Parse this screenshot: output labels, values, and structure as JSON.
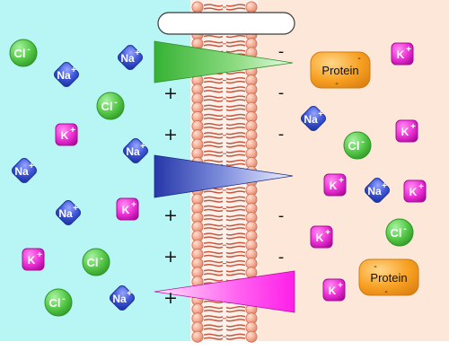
{
  "labels": {
    "title_box": "",
    "cl": "Cl",
    "na": "Na",
    "k": "K",
    "neg": "-",
    "pos": "+",
    "protein": "Protein"
  },
  "colors": {
    "outside": "#b8f6f6",
    "inside": "#fde7d8",
    "membrane_body": "#f4a58b",
    "membrane_tail": "#c7583f",
    "cl": "#57c948",
    "na": "#3e57dc",
    "k": "#f02fd8",
    "protein": "#f7a021",
    "channel_green": "#2fb22f",
    "channel_blue": "#2333aa",
    "channel_magenta": "#ff22ee"
  },
  "icons": {
    "chloride_ion": "circle",
    "sodium_ion": "rounded-diamond",
    "potassium_ion": "rounded-square",
    "protein": "rounded-box"
  }
}
